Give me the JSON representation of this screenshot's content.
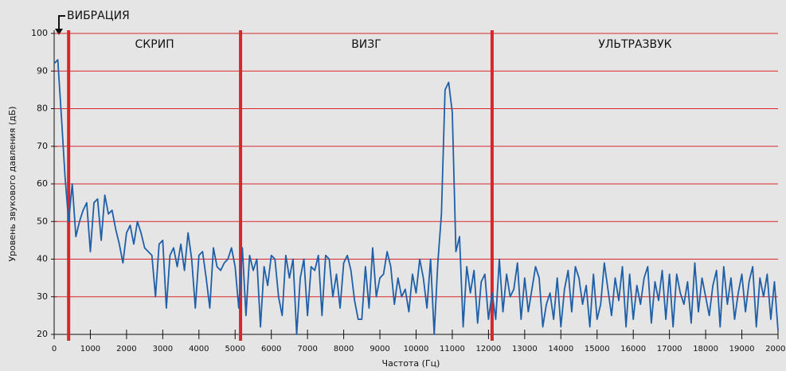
{
  "chart_data": {
    "type": "line",
    "x_label": "Частота (Гц)",
    "y_label": "Уровень звукового давления (дБ)",
    "annotation": "ВИБРАЦИЯ",
    "region_labels": [
      "СКРИП",
      "ВИЗГ",
      "УЛЬТРАЗВУК"
    ],
    "region_bounds": [
      400,
      5150,
      12100
    ],
    "region_color": "#d9262c",
    "grid": true,
    "grid_color": "#d9262c",
    "xlim": [
      0,
      20000
    ],
    "ylim": [
      20,
      100
    ],
    "xticks": [
      0,
      1000,
      2000,
      3000,
      4000,
      5000,
      6000,
      7000,
      8000,
      9000,
      10000,
      11000,
      12000,
      13000,
      14000,
      15000,
      16000,
      17000,
      18000,
      19000,
      20000
    ],
    "yticks": [
      20,
      30,
      40,
      50,
      60,
      70,
      80,
      90,
      100
    ],
    "x": [
      0,
      100,
      200,
      300,
      400,
      500,
      600,
      700,
      800,
      900,
      1000,
      1100,
      1200,
      1300,
      1400,
      1500,
      1600,
      1700,
      1800,
      1900,
      2000,
      2100,
      2200,
      2300,
      2400,
      2500,
      2600,
      2700,
      2800,
      2900,
      3000,
      3100,
      3200,
      3300,
      3400,
      3500,
      3600,
      3700,
      3800,
      3900,
      4000,
      4100,
      4200,
      4300,
      4400,
      4500,
      4600,
      4700,
      4800,
      4900,
      5000,
      5100,
      5200,
      5300,
      5400,
      5500,
      5600,
      5700,
      5800,
      5900,
      6000,
      6100,
      6200,
      6300,
      6400,
      6500,
      6600,
      6700,
      6800,
      6900,
      7000,
      7100,
      7200,
      7300,
      7400,
      7500,
      7600,
      7700,
      7800,
      7900,
      8000,
      8100,
      8200,
      8300,
      8400,
      8500,
      8600,
      8700,
      8800,
      8900,
      9000,
      9100,
      9200,
      9300,
      9400,
      9500,
      9600,
      9700,
      9800,
      9900,
      10000,
      10100,
      10200,
      10300,
      10400,
      10500,
      10600,
      10700,
      10800,
      10900,
      11000,
      11100,
      11200,
      11300,
      11400,
      11500,
      11600,
      11700,
      11800,
      11900,
      12000,
      12100,
      12200,
      12300,
      12400,
      12500,
      12600,
      12700,
      12800,
      12900,
      13000,
      13100,
      13200,
      13300,
      13400,
      13500,
      13600,
      13700,
      13800,
      13900,
      14000,
      14100,
      14200,
      14300,
      14400,
      14500,
      14600,
      14700,
      14800,
      14900,
      15000,
      15100,
      15200,
      15300,
      15400,
      15500,
      15600,
      15700,
      15800,
      15900,
      16000,
      16100,
      16200,
      16300,
      16400,
      16500,
      16600,
      16700,
      16800,
      16900,
      17000,
      17100,
      17200,
      17300,
      17400,
      17500,
      17600,
      17700,
      17800,
      17900,
      18000,
      18100,
      18200,
      18300,
      18400,
      18500,
      18600,
      18700,
      18800,
      18900,
      19000,
      19100,
      19200,
      19300,
      19400,
      19500,
      19600,
      19700,
      19800,
      19900,
      20000
    ],
    "series": [
      {
        "color": "#1f5fa8",
        "values": [
          92,
          93,
          78,
          62,
          50,
          60,
          46,
          50,
          53,
          55,
          42,
          55,
          56,
          45,
          57,
          52,
          53,
          48,
          44,
          39,
          47,
          49,
          44,
          50,
          47,
          43,
          42,
          41,
          30,
          44,
          45,
          27,
          41,
          43,
          38,
          44,
          37,
          47,
          40,
          27,
          41,
          42,
          35,
          27,
          43,
          38,
          37,
          39,
          40,
          43,
          38,
          27,
          43,
          25,
          41,
          37,
          40,
          22,
          38,
          33,
          41,
          40,
          30,
          25,
          41,
          35,
          40,
          20,
          35,
          40,
          25,
          38,
          37,
          41,
          25,
          41,
          40,
          30,
          36,
          27,
          39,
          41,
          37,
          29,
          24,
          24,
          38,
          27,
          43,
          30,
          35,
          36,
          42,
          38,
          28,
          35,
          30,
          32,
          26,
          36,
          31,
          40,
          35,
          27,
          40,
          20,
          39,
          52,
          85,
          87,
          79,
          42,
          46,
          22,
          38,
          31,
          37,
          23,
          34,
          36,
          24,
          31,
          24,
          40,
          26,
          36,
          30,
          32,
          39,
          24,
          35,
          26,
          32,
          38,
          35,
          22,
          28,
          31,
          24,
          35,
          22,
          32,
          37,
          26,
          38,
          35,
          28,
          33,
          22,
          36,
          24,
          28,
          39,
          32,
          25,
          35,
          29,
          38,
          22,
          36,
          24,
          33,
          28,
          35,
          38,
          23,
          34,
          29,
          37,
          24,
          36,
          22,
          36,
          31,
          28,
          34,
          23,
          39,
          26,
          35,
          30,
          25,
          33,
          37,
          22,
          38,
          28,
          35,
          24,
          31,
          36,
          26,
          34,
          38,
          22,
          35,
          30,
          36,
          24,
          34,
          21
        ]
      }
    ]
  }
}
